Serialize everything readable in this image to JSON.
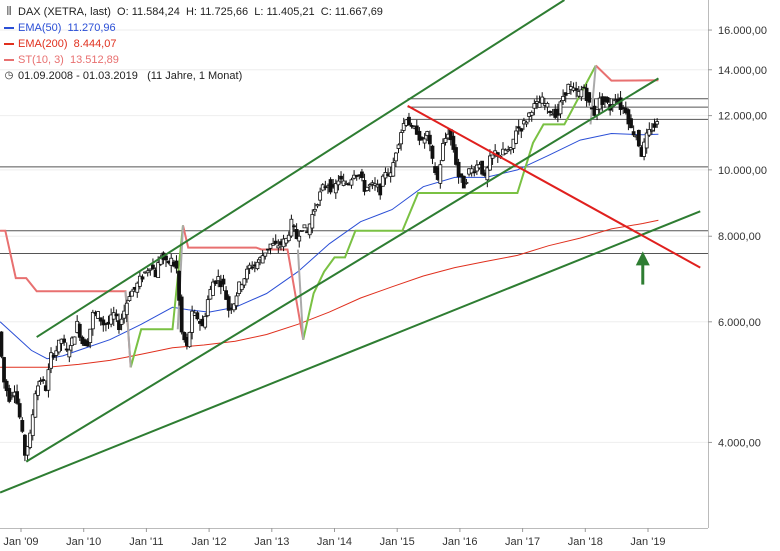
{
  "header": {
    "symbol": "DAX (XETRA, last)",
    "o": "O: 11.584,24",
    "h": "H: 11.725,66",
    "l": "L: 11.405,21",
    "c": "C: 11.667,69",
    "ema50": "EMA(50)",
    "ema50_val": "11.270,96",
    "ema200": "EMA(200)",
    "ema200_val": "8.444,07",
    "st": "ST(10, 3)",
    "st_val": "13.512,89",
    "range": "01.09.2008 - 01.03.2019",
    "range_note": "(11 Jahre, 1 Monat)",
    "icons": {
      "chart": "candlestick-icon",
      "clock": "clock-icon"
    }
  },
  "colors": {
    "ema50": "#2b4fd6",
    "ema200": "#e0301e",
    "st": "#e87070",
    "st_up": "#7ac143",
    "trend": "#2e7d32",
    "downtrend": "#e0201e",
    "arrow": "#2e7d32",
    "candle": "#111111",
    "level": "#555555"
  },
  "chart_data": {
    "type": "candlestick",
    "y_scale": "log",
    "ylim": [
      3000,
      17700
    ],
    "x_range": [
      "2008-09",
      "2019-03"
    ],
    "y_ticks": [
      {
        "v": 16000,
        "label": "16.000,00"
      },
      {
        "v": 14000,
        "label": "14.000,00"
      },
      {
        "v": 12000,
        "label": "12.000,00"
      },
      {
        "v": 10000,
        "label": "10.000,00"
      },
      {
        "v": 8000,
        "label": "8.000,00"
      },
      {
        "v": 6000,
        "label": "6.000,00"
      },
      {
        "v": 4000,
        "label": "4.000,00"
      }
    ],
    "x_ticks": [
      {
        "date": "2009-01",
        "label": "Jan '09"
      },
      {
        "date": "2010-01",
        "label": "Jan '10"
      },
      {
        "date": "2011-01",
        "label": "Jan '11"
      },
      {
        "date": "2012-01",
        "label": "Jan '12"
      },
      {
        "date": "2013-01",
        "label": "Jan '13"
      },
      {
        "date": "2014-01",
        "label": "Jan '14"
      },
      {
        "date": "2015-01",
        "label": "Jan '15"
      },
      {
        "date": "2016-01",
        "label": "Jan '16"
      },
      {
        "date": "2017-01",
        "label": "Jan '17"
      },
      {
        "date": "2018-01",
        "label": "Jan '18"
      },
      {
        "date": "2019-01",
        "label": "Jan '19"
      }
    ],
    "close_path": [
      [
        "2008-09",
        5800
      ],
      [
        "2008-10",
        4900
      ],
      [
        "2008-11",
        4650
      ],
      [
        "2008-12",
        4800
      ],
      [
        "2009-01",
        4350
      ],
      [
        "2009-02",
        3850
      ],
      [
        "2009-03",
        4080
      ],
      [
        "2009-04",
        4750
      ],
      [
        "2009-05",
        4950
      ],
      [
        "2009-06",
        4800
      ],
      [
        "2009-07",
        5350
      ],
      [
        "2009-08",
        5460
      ],
      [
        "2009-09",
        5670
      ],
      [
        "2009-10",
        5410
      ],
      [
        "2009-11",
        5620
      ],
      [
        "2009-12",
        5950
      ],
      [
        "2010-01",
        5600
      ],
      [
        "2010-02",
        5600
      ],
      [
        "2010-03",
        6150
      ],
      [
        "2010-04",
        6140
      ],
      [
        "2010-05",
        5960
      ],
      [
        "2010-06",
        5960
      ],
      [
        "2010-07",
        6150
      ],
      [
        "2010-08",
        5920
      ],
      [
        "2010-09",
        6230
      ],
      [
        "2010-10",
        6600
      ],
      [
        "2010-11",
        6690
      ],
      [
        "2010-12",
        6910
      ],
      [
        "2011-01",
        7080
      ],
      [
        "2011-02",
        7270
      ],
      [
        "2011-03",
        7040
      ],
      [
        "2011-04",
        7510
      ],
      [
        "2011-05",
        7290
      ],
      [
        "2011-06",
        7380
      ],
      [
        "2011-07",
        7160
      ],
      [
        "2011-08",
        5780
      ],
      [
        "2011-09",
        5500
      ],
      [
        "2011-10",
        6140
      ],
      [
        "2011-11",
        6090
      ],
      [
        "2011-12",
        5900
      ],
      [
        "2012-01",
        6460
      ],
      [
        "2012-02",
        6860
      ],
      [
        "2012-03",
        6950
      ],
      [
        "2012-04",
        6760
      ],
      [
        "2012-05",
        6260
      ],
      [
        "2012-06",
        6420
      ],
      [
        "2012-07",
        6770
      ],
      [
        "2012-08",
        6970
      ],
      [
        "2012-09",
        7220
      ],
      [
        "2012-10",
        7260
      ],
      [
        "2012-11",
        7400
      ],
      [
        "2012-12",
        7610
      ],
      [
        "2013-01",
        7780
      ],
      [
        "2013-02",
        7740
      ],
      [
        "2013-03",
        7800
      ],
      [
        "2013-04",
        7910
      ],
      [
        "2013-05",
        8350
      ],
      [
        "2013-06",
        7960
      ],
      [
        "2013-07",
        8280
      ],
      [
        "2013-08",
        8100
      ],
      [
        "2013-09",
        8590
      ],
      [
        "2013-10",
        9030
      ],
      [
        "2013-11",
        9400
      ],
      [
        "2013-12",
        9550
      ],
      [
        "2014-01",
        9300
      ],
      [
        "2014-02",
        9690
      ],
      [
        "2014-03",
        9550
      ],
      [
        "2014-04",
        9600
      ],
      [
        "2014-05",
        9940
      ],
      [
        "2014-06",
        9830
      ],
      [
        "2014-07",
        9400
      ],
      [
        "2014-08",
        9470
      ],
      [
        "2014-09",
        9470
      ],
      [
        "2014-10",
        9330
      ],
      [
        "2014-11",
        9980
      ],
      [
        "2014-12",
        9800
      ],
      [
        "2015-01",
        10690
      ],
      [
        "2015-02",
        11400
      ],
      [
        "2015-03",
        11970
      ],
      [
        "2015-04",
        11450
      ],
      [
        "2015-05",
        11410
      ],
      [
        "2015-06",
        10940
      ],
      [
        "2015-07",
        11310
      ],
      [
        "2015-08",
        10260
      ],
      [
        "2015-09",
        9660
      ],
      [
        "2015-10",
        10850
      ],
      [
        "2015-11",
        11380
      ],
      [
        "2015-12",
        10740
      ],
      [
        "2016-01",
        9800
      ],
      [
        "2016-02",
        9500
      ],
      [
        "2016-03",
        9960
      ],
      [
        "2016-04",
        10040
      ],
      [
        "2016-05",
        10260
      ],
      [
        "2016-06",
        9680
      ],
      [
        "2016-07",
        10330
      ],
      [
        "2016-08",
        10590
      ],
      [
        "2016-09",
        10510
      ],
      [
        "2016-10",
        10670
      ],
      [
        "2016-11",
        10640
      ],
      [
        "2016-12",
        11480
      ],
      [
        "2017-01",
        11540
      ],
      [
        "2017-02",
        11830
      ],
      [
        "2017-03",
        12310
      ],
      [
        "2017-04",
        12440
      ],
      [
        "2017-05",
        12610
      ],
      [
        "2017-06",
        12330
      ],
      [
        "2017-07",
        12120
      ],
      [
        "2017-08",
        12060
      ],
      [
        "2017-09",
        12830
      ],
      [
        "2017-10",
        13230
      ],
      [
        "2017-11",
        13020
      ],
      [
        "2017-12",
        12920
      ],
      [
        "2018-01",
        13190
      ],
      [
        "2018-02",
        12440
      ],
      [
        "2018-03",
        12100
      ],
      [
        "2018-04",
        12610
      ],
      [
        "2018-05",
        12600
      ],
      [
        "2018-06",
        12310
      ],
      [
        "2018-07",
        12810
      ],
      [
        "2018-08",
        12360
      ],
      [
        "2018-09",
        12250
      ],
      [
        "2018-10",
        11450
      ],
      [
        "2018-11",
        11260
      ],
      [
        "2018-12",
        10560
      ],
      [
        "2019-01",
        11170
      ],
      [
        "2019-02",
        11520
      ],
      [
        "2019-03",
        11668
      ]
    ],
    "ema50": [
      [
        "2008-09",
        6000
      ],
      [
        "2009-03",
        5450
      ],
      [
        "2009-06",
        5300
      ],
      [
        "2009-09",
        5350
      ],
      [
        "2009-12",
        5450
      ],
      [
        "2010-06",
        5650
      ],
      [
        "2010-12",
        5950
      ],
      [
        "2011-06",
        6300
      ],
      [
        "2011-09",
        6250
      ],
      [
        "2012-01",
        6200
      ],
      [
        "2012-06",
        6300
      ],
      [
        "2012-12",
        6600
      ],
      [
        "2013-06",
        7100
      ],
      [
        "2013-12",
        7800
      ],
      [
        "2014-06",
        8400
      ],
      [
        "2014-12",
        8750
      ],
      [
        "2015-06",
        9450
      ],
      [
        "2015-12",
        9750
      ],
      [
        "2016-06",
        9750
      ],
      [
        "2016-12",
        10000
      ],
      [
        "2017-06",
        10500
      ],
      [
        "2017-12",
        11050
      ],
      [
        "2018-06",
        11300
      ],
      [
        "2018-12",
        11250
      ],
      [
        "2019-03",
        11270
      ]
    ],
    "ema200": [
      [
        "2008-09",
        5150
      ],
      [
        "2009-06",
        5150
      ],
      [
        "2009-12",
        5200
      ],
      [
        "2010-06",
        5270
      ],
      [
        "2010-12",
        5380
      ],
      [
        "2011-06",
        5500
      ],
      [
        "2011-12",
        5550
      ],
      [
        "2012-06",
        5620
      ],
      [
        "2012-12",
        5750
      ],
      [
        "2013-06",
        5950
      ],
      [
        "2013-12",
        6200
      ],
      [
        "2014-06",
        6500
      ],
      [
        "2014-12",
        6750
      ],
      [
        "2015-06",
        7000
      ],
      [
        "2015-12",
        7200
      ],
      [
        "2016-06",
        7350
      ],
      [
        "2016-12",
        7500
      ],
      [
        "2017-06",
        7750
      ],
      [
        "2017-12",
        7950
      ],
      [
        "2018-06",
        8200
      ],
      [
        "2018-12",
        8350
      ],
      [
        "2019-03",
        8444
      ]
    ],
    "supertrend_down": [
      [
        [
          "2008-09",
          8150
        ],
        [
          "2008-10",
          8150
        ],
        [
          "2008-12",
          6950
        ],
        [
          "2009-02",
          6950
        ],
        [
          "2009-04",
          6650
        ],
        [
          "2010-09",
          6650
        ],
        [
          "2010-10",
          5150
        ]
      ],
      [
        [
          "2011-08",
          8300
        ],
        [
          "2011-09",
          7700
        ],
        [
          "2012-10",
          7700
        ],
        [
          "2012-11",
          7650
        ],
        [
          "2013-04",
          7650
        ],
        [
          "2013-07",
          5650
        ]
      ],
      [
        [
          "2018-03",
          14200
        ],
        [
          "2018-06",
          13500
        ],
        [
          "2019-03",
          13513
        ]
      ]
    ],
    "supertrend_up": [
      [
        [
          "2010-10",
          5150
        ],
        [
          "2010-12",
          5850
        ],
        [
          "2011-06",
          5850
        ],
        [
          "2011-08",
          8300
        ]
      ],
      [
        [
          "2013-07",
          5650
        ],
        [
          "2013-09",
          6600
        ],
        [
          "2013-11",
          7100
        ],
        [
          "2014-01",
          7450
        ],
        [
          "2014-03",
          7450
        ],
        [
          "2014-05",
          8150
        ],
        [
          "2015-02",
          8150
        ],
        [
          "2015-05",
          9250
        ],
        [
          "2016-10",
          9250
        ],
        [
          "2016-12",
          9250
        ],
        [
          "2017-03",
          10950
        ],
        [
          "2017-05",
          11650
        ],
        [
          "2017-09",
          11650
        ],
        [
          "2018-03",
          14200
        ]
      ]
    ],
    "levels": [
      12700,
      12350,
      11850,
      10100,
      8150,
      7550
    ],
    "trendlines": [
      {
        "kind": "up-channel-top",
        "from": [
          "2009-04",
          5700
        ],
        "to": [
          "2017-09",
          17700
        ]
      },
      {
        "kind": "up-channel-bottom",
        "from": [
          "2009-02",
          3750
        ],
        "to": [
          "2019-03",
          13600
        ]
      },
      {
        "kind": "long-uptrend",
        "from": [
          "2008-09",
          3380
        ],
        "to": [
          "2019-11",
          8700
        ]
      },
      {
        "kind": "downtrend",
        "from": [
          "2015-03",
          12400
        ],
        "to": [
          "2019-11",
          7200
        ]
      }
    ],
    "arrow": {
      "date": "2018-12",
      "from": 6800,
      "to": 7500
    }
  }
}
